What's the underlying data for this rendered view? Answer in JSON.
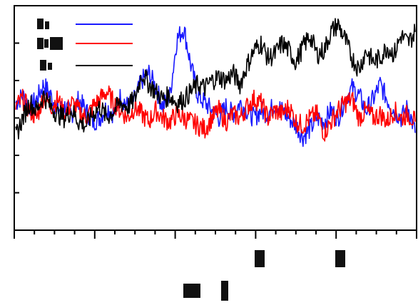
{
  "chart_data": {
    "type": "line",
    "title": "",
    "xlabel": "",
    "ylabel": "",
    "x_tick_count": 5,
    "y_tick_count": 6,
    "x_range": [
      0,
      5
    ],
    "ylim": [
      0,
      6
    ],
    "grid": false,
    "legend_placement": "top-left",
    "legend_labels_legible": false,
    "series": [
      {
        "color": "#1a1aff",
        "values": [
          3.4,
          3.6,
          3.3,
          3.5,
          3.9,
          3.6,
          3.2,
          3.3,
          3.1,
          3.5,
          3.2,
          2.9,
          3.0,
          3.3,
          3.1,
          3.6,
          3.3,
          3.5,
          4.0,
          4.2,
          3.8,
          3.3,
          3.6,
          5.1,
          5.4,
          4.4,
          3.6,
          3.4,
          3.2,
          3.0,
          3.3,
          3.1,
          3.4,
          3.2,
          3.0,
          3.2,
          3.1,
          3.4,
          3.2,
          3.0,
          2.8,
          2.5,
          2.7,
          3.0,
          2.9,
          3.2,
          3.0,
          3.5,
          3.8,
          3.6,
          3.2,
          3.5,
          3.9,
          3.5,
          3.2,
          3.0,
          3.3,
          2.6
        ]
      },
      {
        "color": "#ff0000",
        "values": [
          3.3,
          3.5,
          3.2,
          3.0,
          3.6,
          3.3,
          3.5,
          3.1,
          3.4,
          3.2,
          3.0,
          3.3,
          3.5,
          3.7,
          3.4,
          3.2,
          3.0,
          3.3,
          3.1,
          2.9,
          3.2,
          3.0,
          2.9,
          3.1,
          3.0,
          2.9,
          2.8,
          2.7,
          3.0,
          3.2,
          2.9,
          3.1,
          3.0,
          3.3,
          3.5,
          3.4,
          3.0,
          3.2,
          3.1,
          3.3,
          2.9,
          2.8,
          3.0,
          3.1,
          2.6,
          2.9,
          3.2,
          3.4,
          3.5,
          3.0,
          3.2,
          3.0,
          3.1,
          2.9,
          3.2,
          3.0,
          3.1,
          2.9
        ]
      },
      {
        "color": "#000000",
        "values": [
          2.5,
          3.0,
          3.4,
          3.2,
          3.6,
          3.3,
          3.1,
          3.0,
          3.2,
          2.9,
          2.8,
          3.1,
          3.3,
          3.0,
          3.2,
          3.4,
          3.3,
          3.5,
          4.2,
          3.9,
          3.7,
          3.5,
          3.6,
          3.4,
          3.5,
          3.7,
          3.9,
          3.8,
          4.0,
          4.1,
          4.0,
          4.2,
          3.9,
          4.4,
          4.8,
          5.0,
          4.6,
          4.7,
          5.0,
          4.8,
          4.5,
          4.9,
          5.2,
          4.7,
          4.8,
          5.3,
          5.5,
          5.1,
          4.6,
          4.3,
          4.8,
          4.5,
          4.6,
          4.9,
          4.7,
          5.2,
          5.0,
          5.3
        ]
      }
    ]
  }
}
